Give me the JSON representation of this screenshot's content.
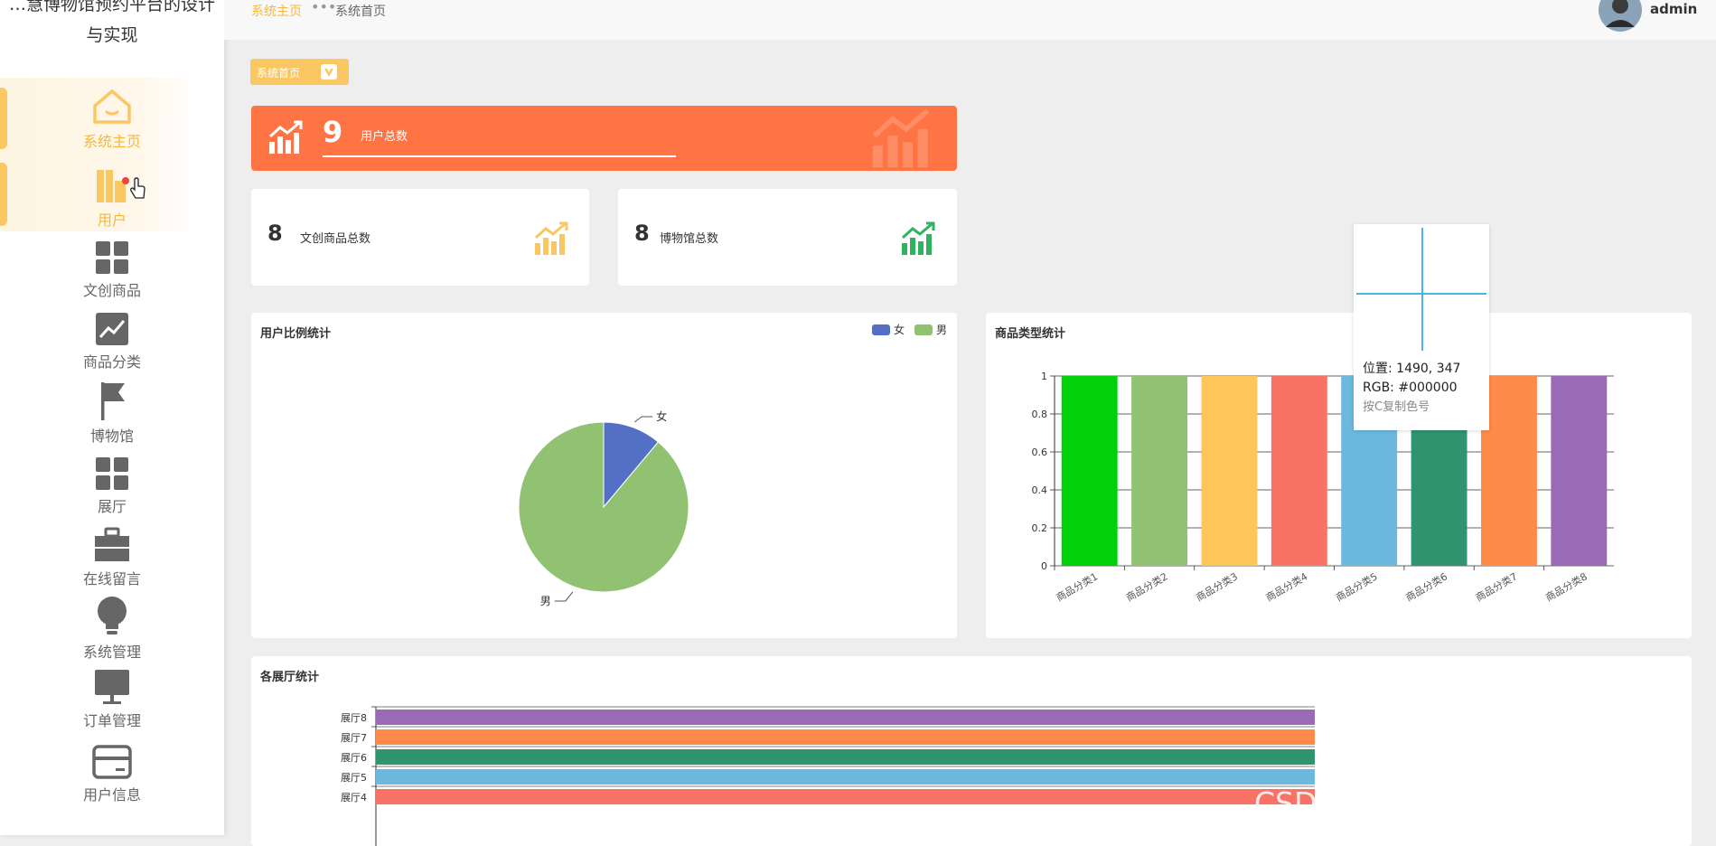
{
  "app": {
    "title_line1": "…慧博物馆预约平台的设计",
    "title_line2": "与实现"
  },
  "sidebar": {
    "items": [
      {
        "label": "系统主页",
        "icon": "home-icon"
      },
      {
        "label": "用户",
        "icon": "users-icon"
      },
      {
        "label": "文创商品",
        "icon": "grid-icon"
      },
      {
        "label": "商品分类",
        "icon": "chart-icon"
      },
      {
        "label": "博物馆",
        "icon": "flag-icon"
      },
      {
        "label": "展厅",
        "icon": "grid-icon"
      },
      {
        "label": "在线留言",
        "icon": "briefcase-icon"
      },
      {
        "label": "系统管理",
        "icon": "bulb-icon"
      },
      {
        "label": "订单管理",
        "icon": "monitor-icon"
      },
      {
        "label": "用户信息",
        "icon": "card-icon"
      }
    ]
  },
  "header": {
    "breadcrumb_home": "系统主页",
    "breadcrumb_current": "系统首页",
    "user": "admin"
  },
  "page": {
    "tag": "系统首页"
  },
  "stats": {
    "users": {
      "value": "9",
      "label": "用户总数"
    },
    "goods": {
      "value": "8",
      "label": "文创商品总数"
    },
    "museums": {
      "value": "8",
      "label": "博物馆总数"
    }
  },
  "colors": {
    "accent": "#f5b83d",
    "orange": "#ff7444",
    "green": "#2fb35f"
  },
  "chart_data": [
    {
      "type": "pie",
      "title": "用户比例统计",
      "legend": [
        "女",
        "男"
      ],
      "legend_position": "top-right",
      "slices": [
        {
          "name": "女",
          "value": 1,
          "color": "#5470c6"
        },
        {
          "name": "男",
          "value": 8,
          "color": "#91c272"
        }
      ]
    },
    {
      "type": "bar",
      "title": "商品类型统计",
      "categories": [
        "商品分类1",
        "商品分类2",
        "商品分类3",
        "商品分类4",
        "商品分类5",
        "商品分类6",
        "商品分类7",
        "商品分类8"
      ],
      "values": [
        1,
        1,
        1,
        1,
        1,
        1,
        1,
        1
      ],
      "colors": [
        "#00d10a",
        "#91c272",
        "#fdc55a",
        "#f87265",
        "#6cb9df",
        "#309470",
        "#ff8b4a",
        "#9b6ab7"
      ],
      "ylim": [
        0,
        1
      ],
      "yticks": [
        "0",
        "0.2",
        "0.4",
        "0.6",
        "0.8",
        "1"
      ]
    },
    {
      "type": "bar",
      "orientation": "horizontal",
      "title": "各展厅统计",
      "categories": [
        "展厅8",
        "展厅7",
        "展厅6",
        "展厅5",
        "展厅4"
      ],
      "values": [
        1,
        1,
        1,
        1,
        1
      ],
      "colors": [
        "#9b6ab7",
        "#ff8b4a",
        "#309470",
        "#6cb9df",
        "#f87265"
      ]
    }
  ],
  "tooltip": {
    "line1": "位置: 1490, 347",
    "line2": "RGB: #000000",
    "line3": "按C复制色号"
  },
  "watermark": "CSDN @计算机毕业编程指导师"
}
